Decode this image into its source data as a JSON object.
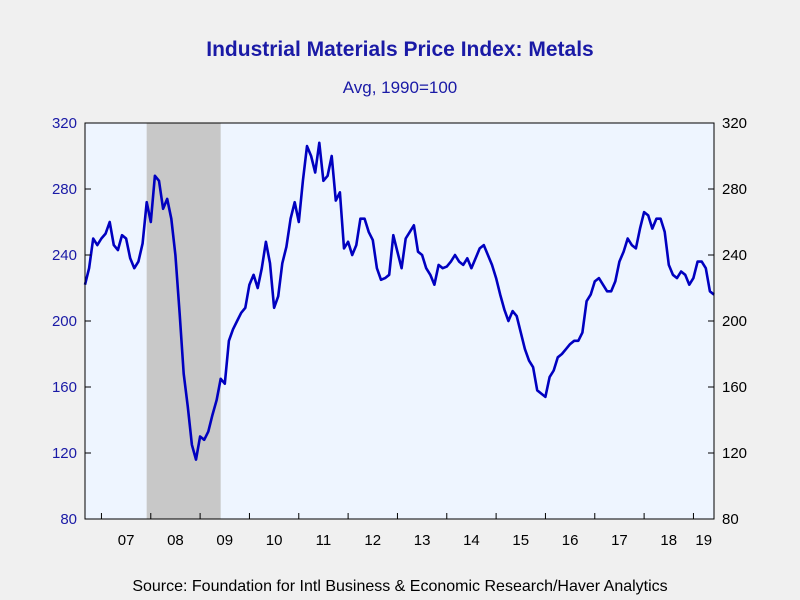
{
  "header": {
    "title": "Industrial Materials Price Index: Metals",
    "subtitle": "Avg, 1990=100"
  },
  "footer": {
    "source": "Source:  Foundation for Intl Business & Economic Research/Haver Analytics"
  },
  "colors": {
    "series": "#0000c0",
    "plot_background": "#eef5ff",
    "recession": "#c8c8c8",
    "axis_text_left": "#1a1aa6",
    "axis_text_right": "#000000"
  },
  "chart_data": {
    "type": "line",
    "title": "Industrial Materials Price Index: Metals",
    "subtitle": "Avg, 1990=100",
    "ylim": [
      80,
      320
    ],
    "yticks": [
      80,
      120,
      160,
      200,
      240,
      280,
      320
    ],
    "xlim": [
      "2006-09",
      "2019-06"
    ],
    "x_tick_labels": [
      "07",
      "08",
      "09",
      "10",
      "11",
      "12",
      "13",
      "14",
      "15",
      "16",
      "17",
      "18",
      "19"
    ],
    "recession_shading": [
      {
        "start": "2007-12",
        "end": "2009-06"
      }
    ],
    "grid": false,
    "legend": "none",
    "series": [
      {
        "points": [
          [
            "2006-09",
            222
          ],
          [
            "2006-10",
            232
          ],
          [
            "2006-11",
            250
          ],
          [
            "2006-12",
            246
          ],
          [
            "2007-01",
            250
          ],
          [
            "2007-02",
            253
          ],
          [
            "2007-03",
            260
          ],
          [
            "2007-04",
            246
          ],
          [
            "2007-05",
            243
          ],
          [
            "2007-06",
            252
          ],
          [
            "2007-07",
            250
          ],
          [
            "2007-08",
            238
          ],
          [
            "2007-09",
            232
          ],
          [
            "2007-10",
            236
          ],
          [
            "2007-11",
            247
          ],
          [
            "2007-12",
            272
          ],
          [
            "2008-01",
            260
          ],
          [
            "2008-02",
            288
          ],
          [
            "2008-03",
            285
          ],
          [
            "2008-04",
            268
          ],
          [
            "2008-05",
            274
          ],
          [
            "2008-06",
            262
          ],
          [
            "2008-07",
            240
          ],
          [
            "2008-08",
            205
          ],
          [
            "2008-09",
            168
          ],
          [
            "2008-10",
            148
          ],
          [
            "2008-11",
            125
          ],
          [
            "2008-12",
            116
          ],
          [
            "2009-01",
            130
          ],
          [
            "2009-02",
            128
          ],
          [
            "2009-03",
            133
          ],
          [
            "2009-04",
            143
          ],
          [
            "2009-05",
            152
          ],
          [
            "2009-06",
            165
          ],
          [
            "2009-07",
            162
          ],
          [
            "2009-08",
            188
          ],
          [
            "2009-09",
            195
          ],
          [
            "2009-10",
            200
          ],
          [
            "2009-11",
            205
          ],
          [
            "2009-12",
            208
          ],
          [
            "2010-01",
            222
          ],
          [
            "2010-02",
            228
          ],
          [
            "2010-03",
            220
          ],
          [
            "2010-04",
            232
          ],
          [
            "2010-05",
            248
          ],
          [
            "2010-06",
            235
          ],
          [
            "2010-07",
            208
          ],
          [
            "2010-08",
            215
          ],
          [
            "2010-09",
            235
          ],
          [
            "2010-10",
            245
          ],
          [
            "2010-11",
            262
          ],
          [
            "2010-12",
            272
          ],
          [
            "2011-01",
            260
          ],
          [
            "2011-02",
            285
          ],
          [
            "2011-03",
            306
          ],
          [
            "2011-04",
            300
          ],
          [
            "2011-05",
            290
          ],
          [
            "2011-06",
            308
          ],
          [
            "2011-07",
            285
          ],
          [
            "2011-08",
            288
          ],
          [
            "2011-09",
            300
          ],
          [
            "2011-10",
            273
          ],
          [
            "2011-11",
            278
          ],
          [
            "2011-12",
            244
          ],
          [
            "2012-01",
            248
          ],
          [
            "2012-02",
            240
          ],
          [
            "2012-03",
            246
          ],
          [
            "2012-04",
            262
          ],
          [
            "2012-05",
            262
          ],
          [
            "2012-06",
            254
          ],
          [
            "2012-07",
            249
          ],
          [
            "2012-08",
            232
          ],
          [
            "2012-09",
            225
          ],
          [
            "2012-10",
            226
          ],
          [
            "2012-11",
            228
          ],
          [
            "2012-12",
            252
          ],
          [
            "2013-01",
            242
          ],
          [
            "2013-02",
            232
          ],
          [
            "2013-03",
            250
          ],
          [
            "2013-04",
            254
          ],
          [
            "2013-05",
            258
          ],
          [
            "2013-06",
            242
          ],
          [
            "2013-07",
            240
          ],
          [
            "2013-08",
            232
          ],
          [
            "2013-09",
            228
          ],
          [
            "2013-10",
            222
          ],
          [
            "2013-11",
            234
          ],
          [
            "2013-12",
            232
          ],
          [
            "2014-01",
            233
          ],
          [
            "2014-02",
            236
          ],
          [
            "2014-03",
            240
          ],
          [
            "2014-04",
            236
          ],
          [
            "2014-05",
            234
          ],
          [
            "2014-06",
            238
          ],
          [
            "2014-07",
            232
          ],
          [
            "2014-08",
            238
          ],
          [
            "2014-09",
            244
          ],
          [
            "2014-10",
            246
          ],
          [
            "2014-11",
            240
          ],
          [
            "2014-12",
            234
          ],
          [
            "2015-01",
            226
          ],
          [
            "2015-02",
            216
          ],
          [
            "2015-03",
            207
          ],
          [
            "2015-04",
            200
          ],
          [
            "2015-05",
            206
          ],
          [
            "2015-06",
            203
          ],
          [
            "2015-07",
            193
          ],
          [
            "2015-08",
            183
          ],
          [
            "2015-09",
            176
          ],
          [
            "2015-10",
            172
          ],
          [
            "2015-11",
            158
          ],
          [
            "2015-12",
            156
          ],
          [
            "2016-01",
            154
          ],
          [
            "2016-02",
            166
          ],
          [
            "2016-03",
            170
          ],
          [
            "2016-04",
            178
          ],
          [
            "2016-05",
            180
          ],
          [
            "2016-06",
            183
          ],
          [
            "2016-07",
            186
          ],
          [
            "2016-08",
            188
          ],
          [
            "2016-09",
            188
          ],
          [
            "2016-10",
            193
          ],
          [
            "2016-11",
            212
          ],
          [
            "2016-12",
            216
          ],
          [
            "2017-01",
            224
          ],
          [
            "2017-02",
            226
          ],
          [
            "2017-03",
            222
          ],
          [
            "2017-04",
            218
          ],
          [
            "2017-05",
            218
          ],
          [
            "2017-06",
            224
          ],
          [
            "2017-07",
            236
          ],
          [
            "2017-08",
            242
          ],
          [
            "2017-09",
            250
          ],
          [
            "2017-10",
            246
          ],
          [
            "2017-11",
            244
          ],
          [
            "2017-12",
            256
          ],
          [
            "2018-01",
            266
          ],
          [
            "2018-02",
            264
          ],
          [
            "2018-03",
            256
          ],
          [
            "2018-04",
            262
          ],
          [
            "2018-05",
            262
          ],
          [
            "2018-06",
            254
          ],
          [
            "2018-07",
            234
          ],
          [
            "2018-08",
            228
          ],
          [
            "2018-09",
            226
          ],
          [
            "2018-10",
            230
          ],
          [
            "2018-11",
            228
          ],
          [
            "2018-12",
            222
          ],
          [
            "2019-01",
            226
          ],
          [
            "2019-02",
            236
          ],
          [
            "2019-03",
            236
          ],
          [
            "2019-04",
            232
          ],
          [
            "2019-05",
            218
          ],
          [
            "2019-06",
            216
          ]
        ]
      }
    ]
  }
}
